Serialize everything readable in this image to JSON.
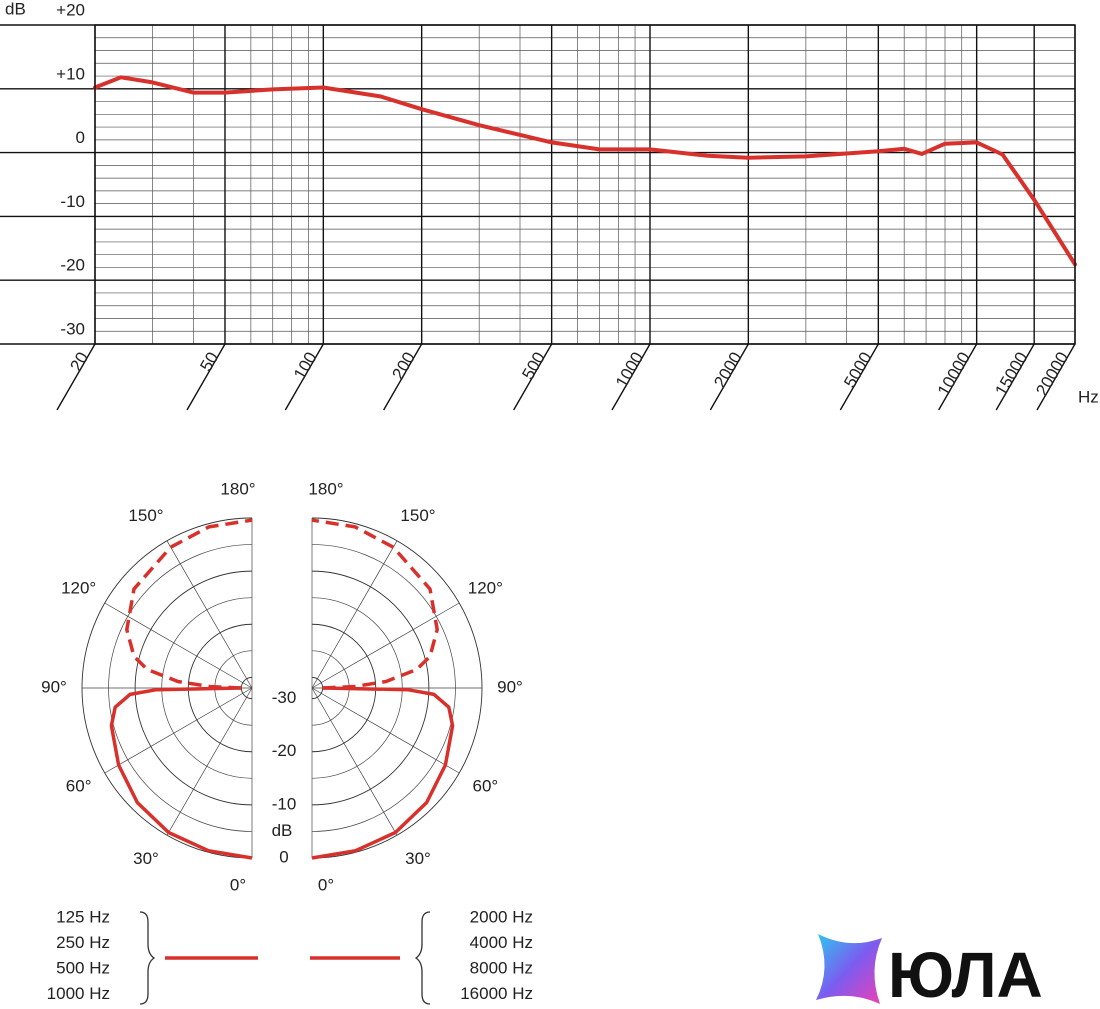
{
  "chart_data": [
    {
      "type": "line",
      "x_scale": "log",
      "x": [
        20,
        24,
        30,
        40,
        50,
        70,
        100,
        150,
        200,
        300,
        500,
        700,
        1000,
        1500,
        2000,
        3000,
        5000,
        6000,
        6800,
        8000,
        10000,
        12000,
        15000,
        20000
      ],
      "series": [
        {
          "color": "#d8312c",
          "values": [
            10.2,
            11.8,
            11,
            9.4,
            9.4,
            9.9,
            10.2,
            8.8,
            6.8,
            4.3,
            1.6,
            0.5,
            0.5,
            -0.5,
            -0.8,
            -0.6,
            0.2,
            0.6,
            -0.2,
            1.4,
            1.6,
            -0.3,
            -7.4,
            -17.5
          ]
        }
      ],
      "xlim": [
        20,
        20000
      ],
      "xticks": [
        20,
        50,
        100,
        200,
        500,
        1000,
        2000,
        5000,
        10000,
        15000,
        20000
      ],
      "xminorticks": [
        30,
        40,
        60,
        70,
        80,
        90,
        300,
        400,
        600,
        700,
        800,
        900,
        3000,
        4000,
        6000,
        7000,
        8000,
        9000
      ],
      "ylim": [
        -30,
        20
      ],
      "yticks": [
        {
          "value": 20,
          "label": "+20"
        },
        {
          "value": 10,
          "label": "+10"
        },
        0,
        -10,
        -20,
        -30
      ],
      "yminorticks": [
        18,
        16,
        14,
        12,
        8,
        6,
        4,
        2,
        -2,
        -4,
        -6,
        -8,
        -12,
        -14,
        -16,
        -18,
        -22,
        -24,
        -26,
        -28
      ],
      "xlabel": "Hz",
      "ylabel": "dB",
      "grid": true
    },
    {
      "type": "polar",
      "rlim": [
        -32,
        0
      ],
      "rticks": [
        0,
        -10,
        -20,
        -30
      ],
      "rminorticks": [
        -5,
        -15,
        -25
      ],
      "rlabel": "dB",
      "thetaticks": [
        {
          "value": 0,
          "label": "0°"
        },
        {
          "value": 30,
          "label": "30°"
        },
        {
          "value": 60,
          "label": "60°"
        },
        {
          "value": 90,
          "label": "90°"
        },
        {
          "value": 120,
          "label": "120°"
        },
        {
          "value": 150,
          "label": "150°"
        },
        {
          "value": 180,
          "label": "180°"
        }
      ],
      "series": [
        {
          "side": "left",
          "style": "solid",
          "color": "#d8312c",
          "legend": [
            "125 Hz",
            "250 Hz",
            "500 Hz",
            "1000 Hz"
          ],
          "angles": [
            0,
            15,
            30,
            45,
            60,
            75,
            82,
            87,
            89,
            90
          ],
          "values": [
            0,
            -0.3,
            -0.6,
            -1.5,
            -3,
            -4.6,
            -6,
            -9,
            -14,
            -30
          ]
        },
        {
          "side": "left",
          "style": "dashed",
          "color": "#d8312c",
          "angles": [
            90,
            92,
            95,
            100,
            105,
            115,
            130,
            150,
            165,
            180
          ],
          "values": [
            -30,
            -24,
            -18,
            -12,
            -9,
            -6,
            -3,
            -1.4,
            -0.6,
            -0.4
          ]
        },
        {
          "side": "right",
          "style": "solid",
          "color": "#d8312c",
          "legend": [
            "2000 Hz",
            "4000 Hz",
            "8000 Hz",
            "16000 Hz"
          ],
          "angles": [
            0,
            15,
            30,
            45,
            60,
            75,
            82,
            87,
            89,
            90
          ],
          "values": [
            0,
            -0.3,
            -0.6,
            -1.5,
            -3,
            -4.6,
            -6,
            -9,
            -14,
            -30
          ]
        },
        {
          "side": "right",
          "style": "dashed",
          "color": "#d8312c",
          "angles": [
            90,
            92,
            95,
            100,
            105,
            115,
            130,
            150,
            165,
            180
          ],
          "values": [
            -30,
            -24,
            -18,
            -12,
            -9,
            -6,
            -3,
            -1.4,
            -0.6,
            -0.4
          ]
        }
      ]
    }
  ],
  "watermark": "ЮЛА"
}
